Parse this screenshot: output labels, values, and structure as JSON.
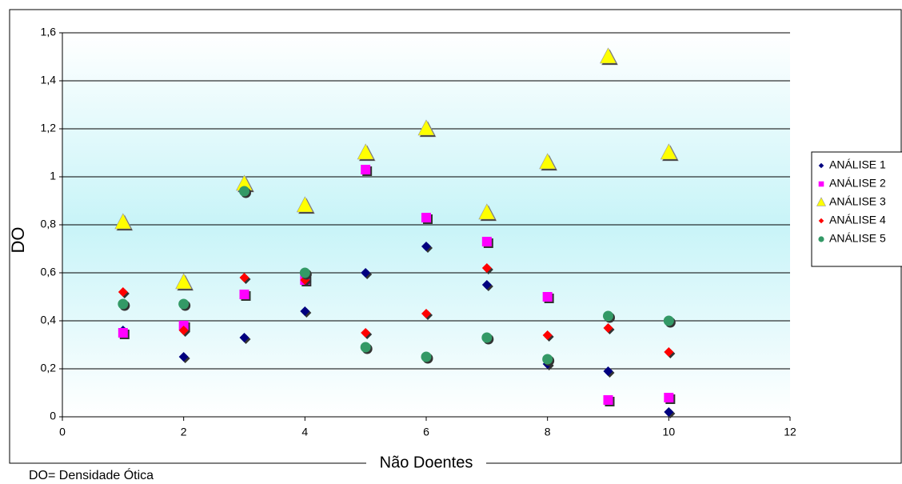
{
  "chart_data": {
    "type": "scatter",
    "x_label": "Não Doentes",
    "y_label": "DO",
    "footnote": "DO= Densidade Ótica",
    "x": [
      1,
      2,
      3,
      4,
      5,
      6,
      7,
      8,
      9,
      10
    ],
    "series": [
      {
        "name": "ANÁLISE 1",
        "color": "#000080",
        "marker": "diamond",
        "values": [
          0.36,
          0.25,
          0.33,
          0.44,
          0.6,
          0.71,
          0.55,
          0.22,
          0.19,
          0.02
        ]
      },
      {
        "name": "ANÁLISE 2",
        "color": "#ff00ff",
        "marker": "square",
        "values": [
          0.35,
          0.38,
          0.51,
          0.57,
          1.03,
          0.83,
          0.73,
          0.5,
          0.07,
          0.08
        ]
      },
      {
        "name": "ANÁLISE 3",
        "color": "#ffff00",
        "marker": "triangle",
        "values": [
          0.81,
          0.56,
          0.97,
          0.88,
          1.1,
          1.2,
          0.85,
          1.06,
          1.5,
          1.1
        ]
      },
      {
        "name": "ANÁLISE 4",
        "color": "#ff0000",
        "marker": "diamond",
        "values": [
          0.52,
          0.36,
          0.58,
          0.57,
          0.35,
          0.43,
          0.62,
          0.34,
          0.37,
          0.27
        ]
      },
      {
        "name": "ANÁLISE 5",
        "color": "#339966",
        "marker": "circle",
        "values": [
          0.47,
          0.47,
          0.94,
          0.6,
          0.29,
          0.25,
          0.33,
          0.24,
          0.42,
          0.4
        ]
      }
    ],
    "xlim": [
      0,
      12
    ],
    "xticks": [
      0,
      2,
      4,
      6,
      8,
      10,
      12
    ],
    "ylim": [
      0,
      1.6
    ],
    "yticks": [
      0,
      {
        "value": 0.2,
        "label": "0,2"
      },
      {
        "value": 0.4,
        "label": "0,4"
      },
      {
        "value": 0.6,
        "label": "0,6"
      },
      {
        "value": 0.8,
        "label": "0,8"
      },
      1,
      {
        "value": 1.2,
        "label": "1,2"
      },
      {
        "value": 1.4,
        "label": "1,4"
      },
      {
        "value": 1.6,
        "label": "1,6"
      }
    ],
    "grid": true,
    "legend": "right"
  }
}
